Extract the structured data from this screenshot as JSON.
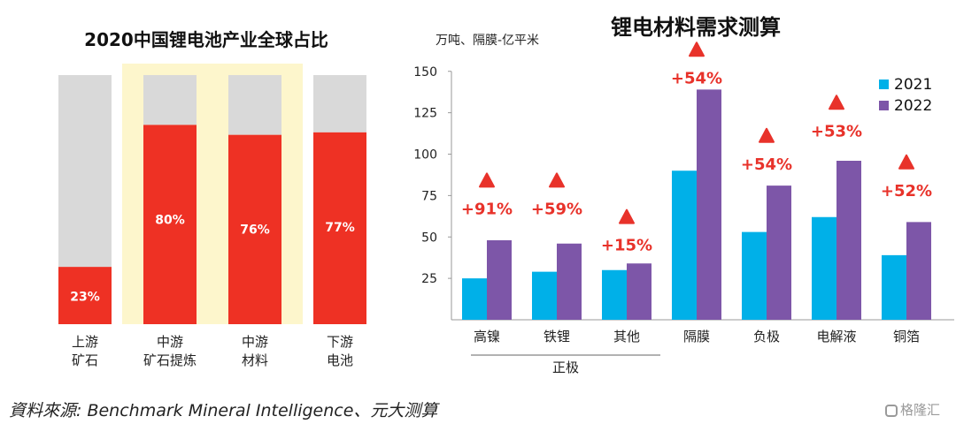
{
  "chart_data": [
    {
      "type": "bar",
      "stacked": true,
      "title": "2020中国锂电池产业全球占比",
      "categories": [
        {
          "line1": "上游",
          "line2": "矿石"
        },
        {
          "line1": "中游",
          "line2": "矿石提炼"
        },
        {
          "line1": "中游",
          "line2": "材料"
        },
        {
          "line1": "下游",
          "line2": "电池"
        }
      ],
      "values": [
        23,
        80,
        76,
        77
      ],
      "value_labels": [
        "23%",
        "80%",
        "76%",
        "77%"
      ],
      "ylim": [
        0,
        100
      ],
      "highlighted_categories": [
        1,
        2
      ],
      "colors": {
        "share": "#ee3124",
        "remainder": "#d9d9d9",
        "highlight": "#fdf6cc",
        "label": "#ffffff"
      },
      "grid": false
    },
    {
      "type": "bar",
      "title": "锂电材料需求测算",
      "ylabel": "万吨、隔膜-亿平米",
      "categories": [
        "高镍",
        "铁锂",
        "其他",
        "隔膜",
        "负极",
        "电解液",
        "铜箔"
      ],
      "group_label": {
        "text": "正极",
        "spans": [
          0,
          2
        ]
      },
      "series": [
        {
          "name": "2021",
          "color": "#00b0e8",
          "values": [
            25,
            29,
            30,
            90,
            53,
            62,
            39
          ]
        },
        {
          "name": "2022",
          "color": "#7d56a8",
          "values": [
            48,
            46,
            34,
            139,
            81,
            96,
            59
          ]
        }
      ],
      "growth_labels": [
        "+91%",
        "+59%",
        "+15%",
        "+54%",
        "+54%",
        "+53%",
        "+52%"
      ],
      "growth_marker_y": [
        83,
        83,
        61,
        162,
        110,
        130,
        94
      ],
      "growth_color": "#e8322a",
      "ylim": [
        0,
        150
      ],
      "yticks": [
        25,
        50,
        75,
        100,
        125,
        150
      ],
      "legend_position": "top-right",
      "grid": false
    }
  ],
  "source": "資料來源: Benchmark Mineral Intelligence、元大测算",
  "watermark": "格隆汇"
}
